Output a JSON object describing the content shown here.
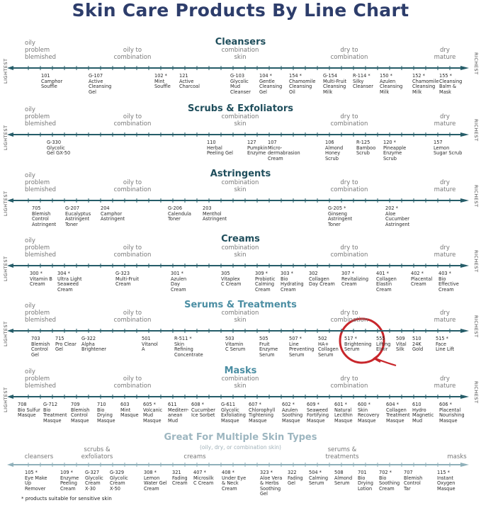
{
  "title": "Skin Care Products By Line Chart",
  "axis_ends": {
    "left": "LIGHTEST",
    "right": "RICHEST"
  },
  "skin_types": [
    "oily\nproblem\nblemished",
    "oily to\ncombination",
    "combination\nskin",
    "dry to\ncombination",
    "dry\nmature"
  ],
  "colors": {
    "title": "#2d3d6b",
    "dark_section": "#1f4e5c",
    "light_section": "#4b8ea3",
    "multi_section": "#9db6c0",
    "axis_dark": "#255c68",
    "axis_light": "#8fb0ba",
    "highlight": "#c8262b"
  },
  "sections": [
    {
      "title": "Cleansers",
      "products": [
        "101\nCamphor\nSouffle",
        "G-107\nActive\nCleansing\nGel",
        "102 *\nMint\nSouffle",
        "121\nActive\nCharcoal",
        "G-103\nGlycolic\nMud\nCleanser",
        "104 *\nGentle\nCleansing\nGel",
        "154 *\nChamomile\nCleansing\nOil",
        "G-154\nMulti-Fruit\nCleansing\nMilk",
        "R-114 *\nSilky\nCleanser",
        "150 *\nAzulen\nCleansing\nMilk",
        "152 *\nChamomile\nCleansing\nMilk",
        "155 *\nCleansing\nBalm &\nMask"
      ]
    },
    {
      "title": "Scrubs & Exfoliators",
      "products": [
        "G-330\nGlycolic\nGel GX-50",
        "110\nHerbal\nPeeling Gel",
        "127\nPumpkin\nEnzyme",
        "107\nMicro-\ndermabrasion\nCream",
        "106\nAlmond\nHoney\nScrub",
        "R-125\nBamboo\nScrub",
        "120 *\nPineapple\nEnzyme\nScrub",
        "157\nLemon\nSugar Scrub"
      ]
    },
    {
      "title": "Astringents",
      "products": [
        "705\nBlemish\nControl\nAstringent",
        "G-207\nEucalyptus\nAstringent\nToner",
        "204\nCamphor\nAstringent",
        "G-206\nCalendula\nToner",
        "203\nMenthol\nAstringent",
        "G-205 *\nGinseng\nAstringent\nToner",
        "202 *\nAloe\nCucumber\nAstringent"
      ]
    },
    {
      "title": "Creams",
      "products": [
        "300 *\nVitamin B\nCream",
        "304 *\nUltra Light\nSeaweed\nCream",
        "G-323\nMulti-Fruit\nCream",
        "301 *\nAzulen\nDay\nCream",
        "305\nVitaplex\nC Cream",
        "309 *\nProbiotic\nCalming\nCream",
        "303 *\nBio\nHydrating\nCream",
        "302\nCollagen\nDay Cream",
        "307 *\nRevitalizing\nCream",
        "401 *\nCollagen\nElastin\nCream",
        "402 *\nPlacental\nCream",
        "403 *\nBio\nEffective\nCream"
      ]
    },
    {
      "title": "Serums & Treatments",
      "products": [
        "703\nBlemish\nControl\nGel",
        "715\nPro Clear\nGel",
        "G-322\nAlpha\nBrightener",
        "501\nVitanol\nA",
        "R-511 *\nSkin\nRefining\nConcentrate",
        "503\nVitamin\nC Serum",
        "505\nFruit\nEnzyme\nSerum",
        "507 *\nLine\nPreventing\nSerum",
        "502\nHA+\nCollagen\nSerum",
        "517 *\nBrightening\nSerum",
        "555\nLifting\nElixir",
        "509\nVital\nSilk",
        "510\n24K\nGold",
        "515 *\nFace\nLine Lift"
      ],
      "highlighted": "517 * Brightening Serum"
    },
    {
      "title": "Masks",
      "products": [
        "708\nBio Sulfur\nMasque",
        "G-712\nBio\nTreatment\nMasque",
        "709\nBlemish\nControl\nMasque",
        "710\nBio\nDrying\nMasque",
        "603\nMint\nMasque",
        "605 *\nVolcanic\nMud\nMasque",
        "611\nMediterr-\nanean\nMud",
        "608 *\nCucumber\nIce Sorbet",
        "G-611\nGlycolic\nExfoliating\nMasque",
        "607 *\nChlorophyll\nTightening\nMasque",
        "602 *\nAzulen\nSoothing\nMasque",
        "609 *\nSeaweed\nFortifying\nMasque",
        "601 *\nNatural\nLecithin\nMasque",
        "600 *\nSkin\nRecovery\nMasque",
        "604 *\nCollagen\nTreatment\nMasque",
        "610\nHydro\nMagnetic\nMud",
        "606 *\nPlacental\nNourishing\nMasque"
      ]
    },
    {
      "title": "Great For Multiple Skin Types",
      "subtitle": "(oily, dry, or combination skin)",
      "categories": [
        "cleansers",
        "scrubs &\nexfoliators",
        "creams",
        "serums &\ntreatments",
        "masks"
      ],
      "products": [
        "105 *\nEye Make\nUp\nRemover",
        "109 *\nEnzyme\nPeeling\nCream",
        "G-327\nGlycolic\nCream\nX-30",
        "G-329\nGlycolic\nCream\nX-50",
        "308 *\nLemon\nWater Gel\nCream",
        "321\nFading\nCream",
        "407 *\nMicrosilk\nC Cream",
        "408 *\nUnder Eye\n& Neck\nCream",
        "323 *\nAloe Vera\n& Herbs\nSoothing\nGel",
        "322\nFading\nGel",
        "504 *\nCalming\nSerum",
        "508\nAlmond\nSerum",
        "701\nBio\nDrying\nLotion",
        "702 *\nBio\nSoothing\nCream",
        "707\nBlemish\nControl\nTar",
        "115 *\nInstant\nOxygen\nMasque"
      ]
    }
  ],
  "footnote": "* products suitable for sensitive skin"
}
